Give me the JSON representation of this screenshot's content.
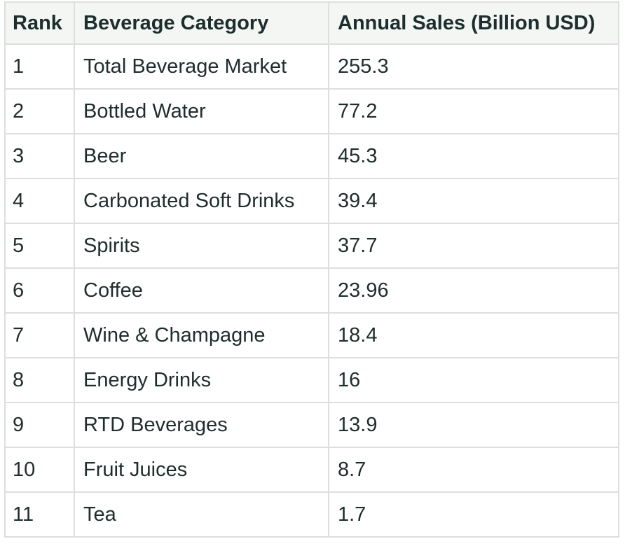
{
  "chart_data": {
    "type": "table",
    "columns": [
      "Rank",
      "Beverage Category",
      "Annual Sales (Billion USD)"
    ],
    "rows": [
      {
        "rank": "1",
        "category": "Total Beverage Market",
        "sales": "255.3"
      },
      {
        "rank": "2",
        "category": "Bottled Water",
        "sales": "77.2"
      },
      {
        "rank": "3",
        "category": "Beer",
        "sales": "45.3"
      },
      {
        "rank": "4",
        "category": "Carbonated Soft Drinks",
        "sales": "39.4"
      },
      {
        "rank": "5",
        "category": "Spirits",
        "sales": "37.7"
      },
      {
        "rank": "6",
        "category": "Coffee",
        "sales": "23.96"
      },
      {
        "rank": "7",
        "category": "Wine & Champagne",
        "sales": "18.4"
      },
      {
        "rank": "8",
        "category": "Energy Drinks",
        "sales": "16"
      },
      {
        "rank": "9",
        "category": "RTD Beverages",
        "sales": "13.9"
      },
      {
        "rank": "10",
        "category": "Fruit Juices",
        "sales": "8.7"
      },
      {
        "rank": "11",
        "category": "Tea",
        "sales": "1.7"
      }
    ]
  },
  "colors": {
    "header_bg": "#f4f6f3",
    "border": "#dcdfdc",
    "text": "#1f2d2c"
  }
}
